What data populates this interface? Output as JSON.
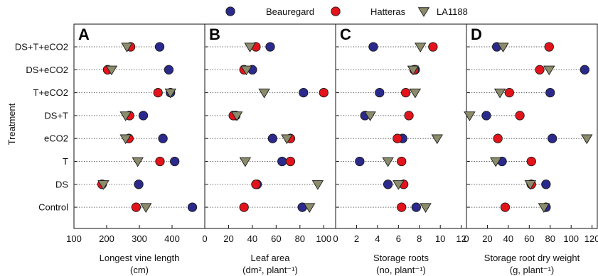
{
  "legend": {
    "items": [
      {
        "label": "Beauregard",
        "color": "#2b2a8c",
        "marker": "circle"
      },
      {
        "label": "Hatteras",
        "color": "#e3131b",
        "marker": "circle"
      },
      {
        "label": "LA1188",
        "color": "#8c8c6c",
        "marker": "triangle-down"
      }
    ]
  },
  "y_axis_label": "Treatment",
  "categories": [
    "DS+T+eCO2",
    "DS+eCO2",
    "T+eCO2",
    "DS+T",
    "eCO2",
    "T",
    "DS",
    "Control"
  ],
  "chart_data": [
    {
      "type": "scatter",
      "panel": "A",
      "xlabel_line1": "Longest vine length",
      "xlabel_line2": "(cm)",
      "xlim": [
        100,
        500
      ],
      "xticks": [
        100,
        200,
        300,
        400
      ],
      "xtick_labels": [
        "100",
        "200",
        "300",
        "400"
      ],
      "series": [
        {
          "name": "Beauregard",
          "values": [
            362,
            390,
            395,
            312,
            372,
            408,
            298,
            462
          ]
        },
        {
          "name": "Hatteras",
          "values": [
            273,
            203,
            357,
            270,
            268,
            363,
            186,
            290
          ]
        },
        {
          "name": "LA1188",
          "values": [
            262,
            215,
            395,
            258,
            258,
            295,
            190,
            320
          ]
        }
      ]
    },
    {
      "type": "scatter",
      "panel": "B",
      "xlabel_line1": "Leaf area",
      "xlabel_line2": "(dm², plant⁻¹)",
      "xlim": [
        0,
        110
      ],
      "xticks": [
        0,
        20,
        40,
        60,
        80,
        100
      ],
      "xtick_labels": [
        "0",
        "20",
        "40",
        "60",
        "80",
        "100"
      ],
      "series": [
        {
          "name": "Beauregard",
          "values": [
            55,
            40,
            83,
            26,
            57,
            65,
            44,
            82
          ]
        },
        {
          "name": "Hatteras",
          "values": [
            43,
            33,
            100,
            24,
            72,
            72,
            43,
            33
          ]
        },
        {
          "name": "LA1188",
          "values": [
            38,
            35,
            50,
            27,
            69,
            34,
            95,
            88
          ]
        }
      ]
    },
    {
      "type": "scatter",
      "panel": "C",
      "xlabel_line1": "Storage roots",
      "xlabel_line2": "(no, plant⁻¹)",
      "xlim": [
        0,
        12.5
      ],
      "xticks": [
        0,
        2,
        4,
        6,
        8,
        10,
        12
      ],
      "xtick_labels": [
        "0",
        "2",
        "4",
        "6",
        "8",
        "10",
        "12"
      ],
      "series": [
        {
          "name": "Beauregard",
          "values": [
            3.6,
            7.6,
            4.2,
            2.8,
            6.4,
            2.3,
            5.0,
            7.7
          ]
        },
        {
          "name": "Hatteras",
          "values": [
            9.3,
            7.5,
            6.7,
            7.0,
            5.9,
            6.3,
            6.5,
            6.3
          ]
        },
        {
          "name": "LA1188",
          "values": [
            8.1,
            7.4,
            7.6,
            3.3,
            9.7,
            5.0,
            6.0,
            8.6
          ]
        }
      ]
    },
    {
      "type": "scatter",
      "panel": "D",
      "xlabel_line1": "Storage root dry weight",
      "xlabel_line2": "(g, plant⁻¹)",
      "xlim": [
        0,
        125
      ],
      "xticks": [
        0,
        20,
        40,
        60,
        80,
        100,
        120
      ],
      "xtick_labels": [
        "0",
        "20",
        "40",
        "60",
        "80",
        "100",
        "120"
      ],
      "series": [
        {
          "name": "Beauregard",
          "values": [
            29,
            113,
            80,
            19,
            82,
            34,
            76,
            76
          ]
        },
        {
          "name": "Hatteras",
          "values": [
            79,
            70,
            41,
            51,
            30,
            62,
            62,
            37
          ]
        },
        {
          "name": "LA1188",
          "values": [
            35,
            79,
            32,
            3,
            115,
            28,
            61,
            74
          ]
        }
      ]
    }
  ]
}
